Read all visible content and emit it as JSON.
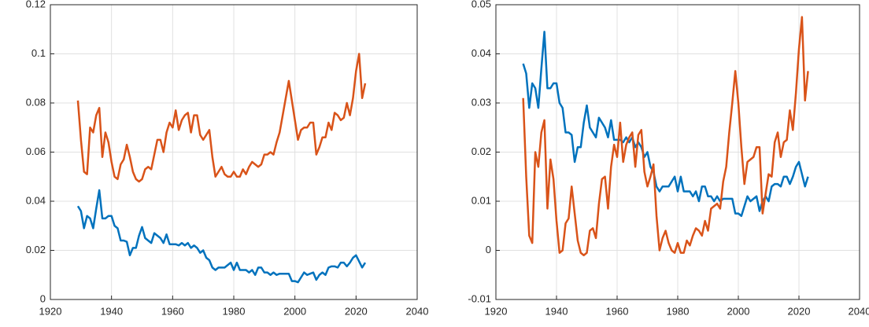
{
  "chart_data": [
    {
      "type": "line",
      "x": [
        1929,
        1930,
        1931,
        1932,
        1933,
        1934,
        1935,
        1936,
        1937,
        1938,
        1939,
        1940,
        1941,
        1942,
        1943,
        1944,
        1945,
        1946,
        1947,
        1948,
        1949,
        1950,
        1951,
        1952,
        1953,
        1954,
        1955,
        1956,
        1957,
        1958,
        1959,
        1960,
        1961,
        1962,
        1963,
        1964,
        1965,
        1966,
        1967,
        1968,
        1969,
        1970,
        1971,
        1972,
        1973,
        1974,
        1975,
        1976,
        1977,
        1978,
        1979,
        1980,
        1981,
        1982,
        1983,
        1984,
        1985,
        1986,
        1987,
        1988,
        1989,
        1990,
        1991,
        1992,
        1993,
        1994,
        1995,
        1996,
        1997,
        1998,
        1999,
        2000,
        2001,
        2002,
        2003,
        2004,
        2005,
        2006,
        2007,
        2008,
        2009,
        2010,
        2011,
        2012,
        2013,
        2014,
        2015,
        2016,
        2017,
        2018,
        2019,
        2020,
        2021,
        2022,
        2023
      ],
      "series": [
        {
          "color": "#0072BD",
          "values": [
            0.038,
            0.036,
            0.029,
            0.034,
            0.033,
            0.029,
            0.037,
            0.0445,
            0.033,
            0.033,
            0.034,
            0.034,
            0.03,
            0.029,
            0.024,
            0.024,
            0.0235,
            0.018,
            0.021,
            0.021,
            0.026,
            0.0295,
            0.025,
            0.024,
            0.023,
            0.027,
            0.026,
            0.025,
            0.023,
            0.0265,
            0.0225,
            0.0225,
            0.0225,
            0.022,
            0.023,
            0.022,
            0.023,
            0.021,
            0.022,
            0.021,
            0.019,
            0.02,
            0.017,
            0.016,
            0.013,
            0.012,
            0.013,
            0.013,
            0.013,
            0.014,
            0.015,
            0.012,
            0.015,
            0.012,
            0.012,
            0.012,
            0.011,
            0.012,
            0.01,
            0.013,
            0.013,
            0.011,
            0.011,
            0.01,
            0.011,
            0.01,
            0.0105,
            0.0105,
            0.0105,
            0.0105,
            0.0075,
            0.0075,
            0.007,
            0.009,
            0.011,
            0.01,
            0.0105,
            0.011,
            0.008,
            0.01,
            0.011,
            0.01,
            0.013,
            0.0135,
            0.0135,
            0.013,
            0.015,
            0.015,
            0.0135,
            0.015,
            0.017,
            0.018,
            0.0155,
            0.013,
            0.015
          ]
        },
        {
          "color": "#D95319",
          "values": [
            0.081,
            0.065,
            0.052,
            0.051,
            0.07,
            0.068,
            0.075,
            0.078,
            0.058,
            0.068,
            0.064,
            0.056,
            0.05,
            0.049,
            0.055,
            0.057,
            0.063,
            0.058,
            0.052,
            0.049,
            0.048,
            0.049,
            0.053,
            0.054,
            0.053,
            0.059,
            0.065,
            0.065,
            0.06,
            0.068,
            0.072,
            0.07,
            0.077,
            0.069,
            0.073,
            0.075,
            0.076,
            0.068,
            0.075,
            0.075,
            0.067,
            0.065,
            0.067,
            0.069,
            0.058,
            0.05,
            0.052,
            0.054,
            0.051,
            0.05,
            0.05,
            0.052,
            0.05,
            0.05,
            0.053,
            0.051,
            0.054,
            0.056,
            0.055,
            0.054,
            0.055,
            0.059,
            0.059,
            0.06,
            0.059,
            0.064,
            0.068,
            0.075,
            0.082,
            0.089,
            0.081,
            0.073,
            0.065,
            0.069,
            0.07,
            0.07,
            0.072,
            0.072,
            0.059,
            0.062,
            0.066,
            0.066,
            0.072,
            0.069,
            0.076,
            0.075,
            0.073,
            0.074,
            0.08,
            0.075,
            0.082,
            0.093,
            0.1,
            0.082,
            0.088
          ]
        }
      ],
      "xlim": [
        1920,
        2040
      ],
      "xticks": [
        1920,
        1940,
        1960,
        1980,
        2000,
        2020,
        2040
      ],
      "ylim": [
        0,
        0.12
      ],
      "yticks": [
        0,
        0.02,
        0.04,
        0.06,
        0.08,
        0.1,
        0.12
      ],
      "grid": true
    },
    {
      "type": "line",
      "x": [
        1929,
        1930,
        1931,
        1932,
        1933,
        1934,
        1935,
        1936,
        1937,
        1938,
        1939,
        1940,
        1941,
        1942,
        1943,
        1944,
        1945,
        1946,
        1947,
        1948,
        1949,
        1950,
        1951,
        1952,
        1953,
        1954,
        1955,
        1956,
        1957,
        1958,
        1959,
        1960,
        1961,
        1962,
        1963,
        1964,
        1965,
        1966,
        1967,
        1968,
        1969,
        1970,
        1971,
        1972,
        1973,
        1974,
        1975,
        1976,
        1977,
        1978,
        1979,
        1980,
        1981,
        1982,
        1983,
        1984,
        1985,
        1986,
        1987,
        1988,
        1989,
        1990,
        1991,
        1992,
        1993,
        1994,
        1995,
        1996,
        1997,
        1998,
        1999,
        2000,
        2001,
        2002,
        2003,
        2004,
        2005,
        2006,
        2007,
        2008,
        2009,
        2010,
        2011,
        2012,
        2013,
        2014,
        2015,
        2016,
        2017,
        2018,
        2019,
        2020,
        2021,
        2022,
        2023
      ],
      "series": [
        {
          "color": "#0072BD",
          "values": [
            0.038,
            0.036,
            0.029,
            0.034,
            0.033,
            0.029,
            0.037,
            0.0445,
            0.033,
            0.033,
            0.034,
            0.034,
            0.03,
            0.029,
            0.024,
            0.024,
            0.0235,
            0.018,
            0.021,
            0.021,
            0.026,
            0.0295,
            0.025,
            0.024,
            0.023,
            0.027,
            0.026,
            0.025,
            0.023,
            0.0265,
            0.0225,
            0.0225,
            0.0225,
            0.022,
            0.023,
            0.022,
            0.023,
            0.021,
            0.022,
            0.021,
            0.019,
            0.02,
            0.017,
            0.016,
            0.013,
            0.012,
            0.013,
            0.013,
            0.013,
            0.014,
            0.015,
            0.012,
            0.015,
            0.012,
            0.012,
            0.012,
            0.011,
            0.012,
            0.01,
            0.013,
            0.013,
            0.011,
            0.011,
            0.01,
            0.011,
            0.01,
            0.0105,
            0.0105,
            0.0105,
            0.0105,
            0.0075,
            0.0075,
            0.007,
            0.009,
            0.011,
            0.01,
            0.0105,
            0.011,
            0.008,
            0.01,
            0.011,
            0.01,
            0.013,
            0.0135,
            0.0135,
            0.013,
            0.015,
            0.015,
            0.0135,
            0.015,
            0.017,
            0.018,
            0.0155,
            0.013,
            0.015
          ]
        },
        {
          "color": "#D95319",
          "values": [
            0.031,
            0.015,
            0.003,
            0.0015,
            0.02,
            0.017,
            0.024,
            0.0265,
            0.0085,
            0.0185,
            0.0145,
            0.006,
            -0.0005,
            0,
            0.0055,
            0.0065,
            0.013,
            0.0075,
            0.002,
            -0.0005,
            -0.001,
            -0.0005,
            0.004,
            0.0045,
            0.0025,
            0.0095,
            0.0145,
            0.015,
            0.0085,
            0.017,
            0.0215,
            0.019,
            0.026,
            0.018,
            0.0215,
            0.023,
            0.024,
            0.017,
            0.0235,
            0.0245,
            0.016,
            0.013,
            0.015,
            0.0175,
            0.007,
            0,
            0.0025,
            0.004,
            0.0015,
            0,
            -0.0005,
            0.0015,
            -0.0005,
            -0.0005,
            0.002,
            0.001,
            0.003,
            0.0045,
            0.004,
            0.003,
            0.006,
            0.004,
            0.0085,
            0.009,
            0.0095,
            0.0085,
            0.014,
            0.017,
            0.024,
            0.03,
            0.0365,
            0.03,
            0.021,
            0.0135,
            0.018,
            0.0185,
            0.019,
            0.021,
            0.021,
            0.0075,
            0.0115,
            0.0155,
            0.015,
            0.022,
            0.024,
            0.019,
            0.022,
            0.0225,
            0.0285,
            0.0245,
            0.032,
            0.041,
            0.0475,
            0.0305,
            0.0365
          ]
        }
      ],
      "xlim": [
        1920,
        2040
      ],
      "xticks": [
        1920,
        1940,
        1960,
        1980,
        2000,
        2020,
        2040
      ],
      "ylim": [
        -0.01,
        0.05
      ],
      "yticks": [
        -0.01,
        0,
        0.01,
        0.02,
        0.03,
        0.04,
        0.05
      ],
      "grid": true
    }
  ]
}
